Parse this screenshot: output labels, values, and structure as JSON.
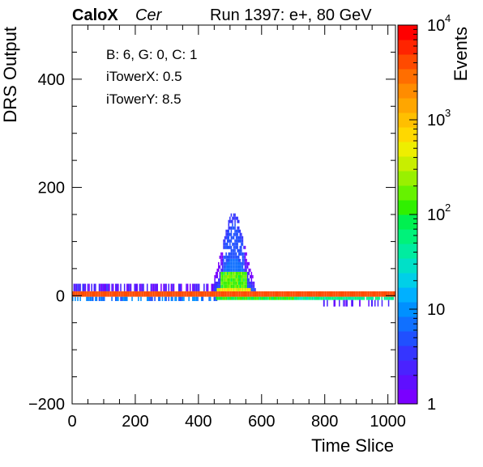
{
  "header": {
    "brand": "CaloX",
    "channel": "Cer",
    "run_info": "Run 1397: e+, 80 GeV"
  },
  "info_box": {
    "line1": "B: 6, G: 0, C: 1",
    "line2": "iTowerX: 0.5",
    "line3": "iTowerY: 8.5"
  },
  "colorbar": {
    "label": "Events",
    "tick_labels": [
      "1",
      "10",
      "10",
      "10",
      "10"
    ],
    "tick_exponents": [
      "",
      "",
      "2",
      "3",
      "4"
    ],
    "range": [
      1,
      10000
    ],
    "scale": "log",
    "palette": [
      "#7a00ff",
      "#5f0fff",
      "#4a22ff",
      "#3535ff",
      "#2050ff",
      "#1070ff",
      "#0090ff",
      "#00b0ff",
      "#00cfe8",
      "#00e0c8",
      "#00eca0",
      "#00f27a",
      "#00f050",
      "#30f000",
      "#66f200",
      "#99f000",
      "#c8ee00",
      "#eeee00",
      "#ffd800",
      "#ffbf00",
      "#ffa600",
      "#ff8c00",
      "#ff6e00",
      "#ff4a00",
      "#ff2400",
      "#ff0000"
    ]
  },
  "chart_data": {
    "type": "heatmap",
    "title": "",
    "xlabel": "Time Slice",
    "ylabel": "DRS Output",
    "xlim": [
      0,
      1024
    ],
    "ylim": [
      -200,
      500
    ],
    "x_ticks": [
      0,
      200,
      400,
      600,
      800,
      1000
    ],
    "y_ticks": [
      -200,
      0,
      200,
      400
    ],
    "z_scale": "log",
    "z_range": [
      1,
      10000
    ],
    "bands": [
      {
        "x": [
          0,
          1024
        ],
        "y": [
          -2,
          8
        ],
        "level": 4000
      },
      {
        "x": [
          455,
          1024
        ],
        "y": [
          -8,
          -2
        ],
        "level": 60
      },
      {
        "x": [
          0,
          460
        ],
        "y": [
          -10,
          -2
        ],
        "level": 8
      },
      {
        "x": [
          0,
          460
        ],
        "y": [
          8,
          22
        ],
        "level": 2
      }
    ],
    "pulse": {
      "x_center": 510,
      "peak_adc": 150,
      "x_span": [
        450,
        580
      ],
      "core_y": [
        10,
        40
      ],
      "core_level": 150
    }
  }
}
